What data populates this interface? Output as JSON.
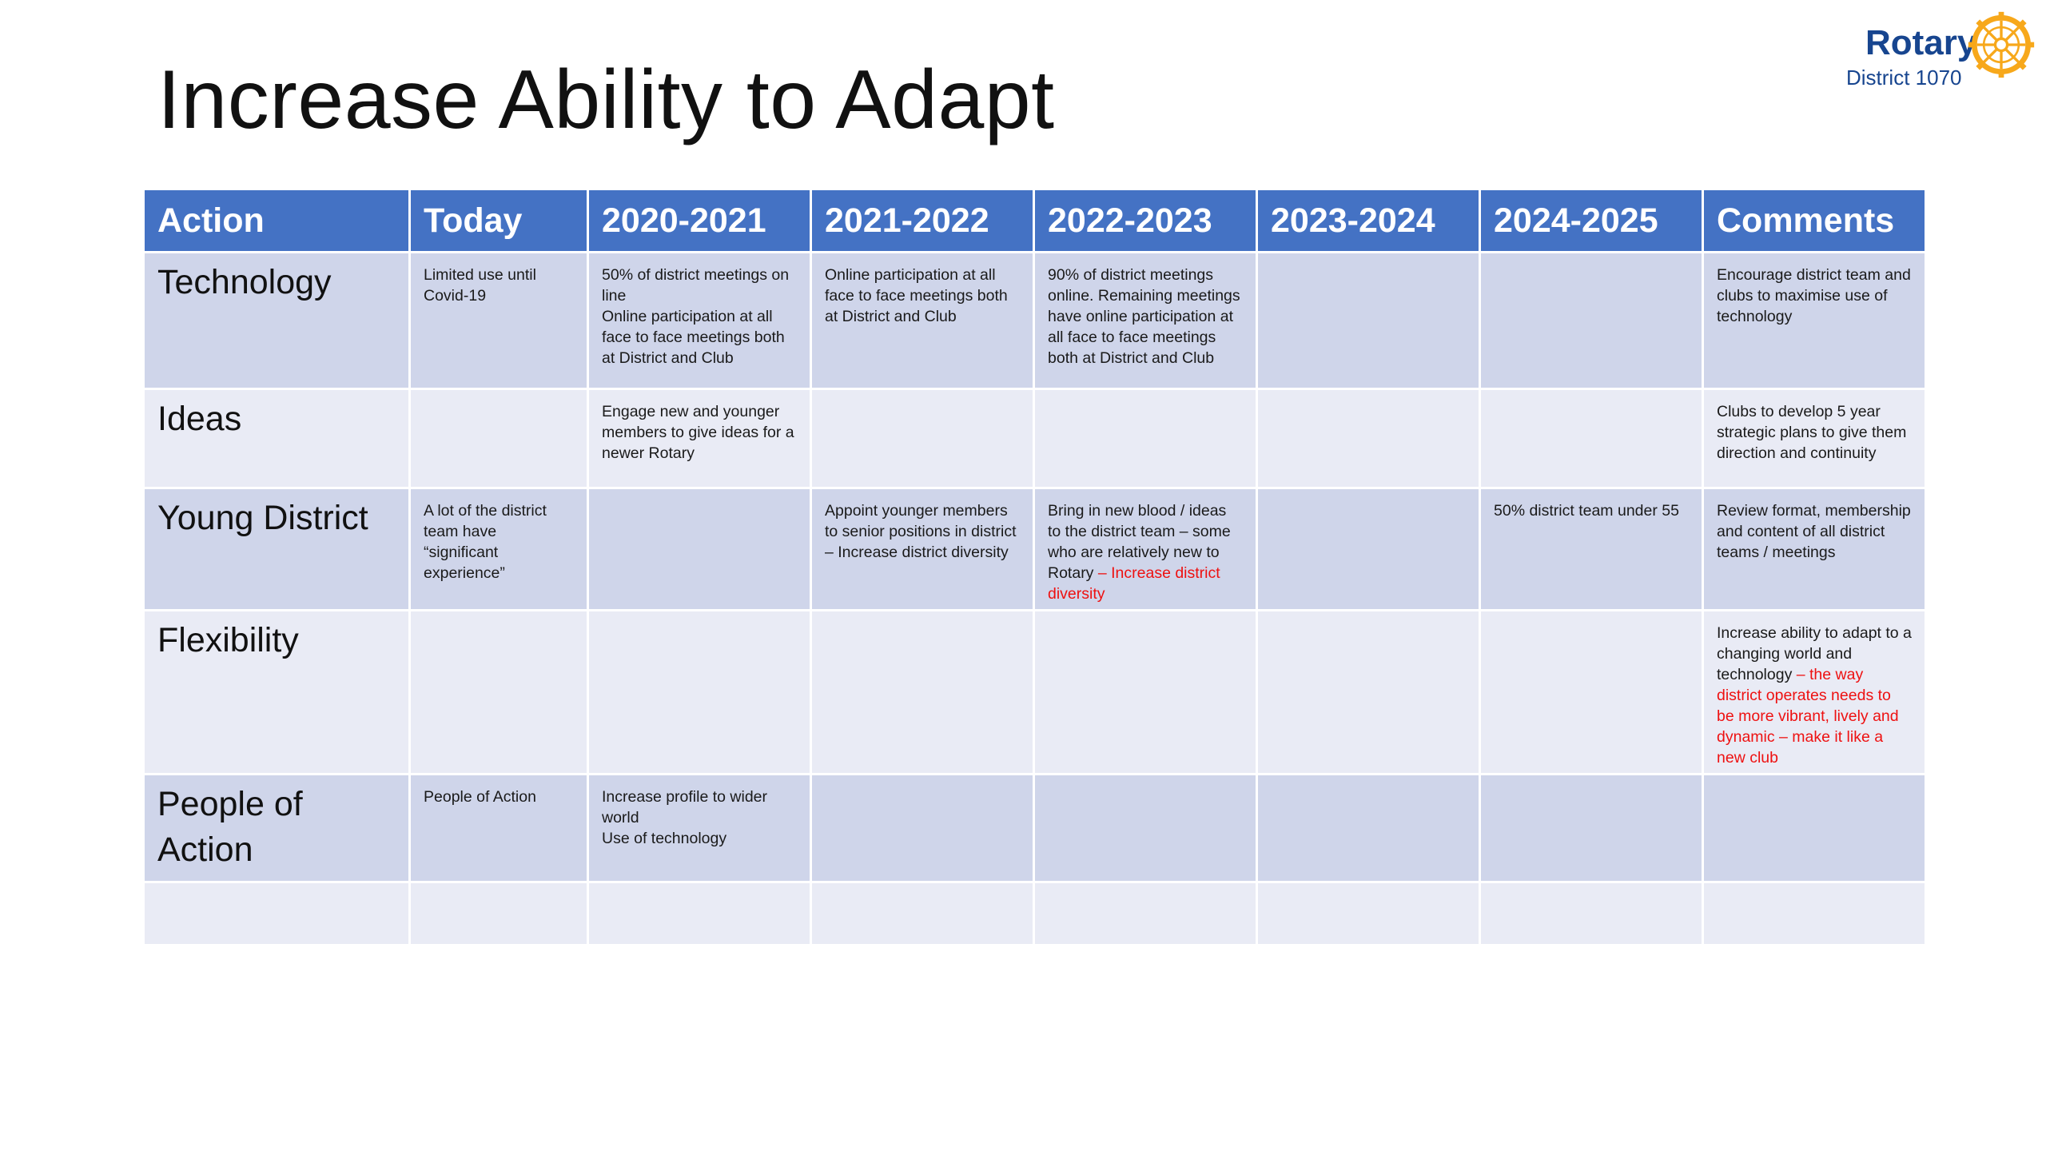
{
  "slide": {
    "title": "Increase Ability to Adapt"
  },
  "logo": {
    "name": "Rotary",
    "district": "District 1070",
    "icon": "rotary-wheel-icon",
    "color": "#17458f",
    "wheel_color": "#f7a81b"
  },
  "colors": {
    "header": "#4472c4",
    "row_dark": "#cfd5ea",
    "row_light": "#e9ebf5",
    "highlight": "#ee1111"
  },
  "table": {
    "headers": [
      "Action",
      "Today",
      "2020-2021",
      "2021-2022",
      "2022-2023",
      "2023-2024",
      "2024-2025",
      "Comments"
    ],
    "rows": {
      "technology": {
        "action": "Technology",
        "today": "Limited use until Covid-19",
        "y2020_2021_a": "50% of district meetings on line",
        "y2020_2021_b": "Online participation at all face to face meetings both at District and Club",
        "y2021_2022": "Online participation at all face to face meetings both at District and Club",
        "y2022_2023": "90% of district meetings online.  Remaining meetings have online participation at all face to face meetings both at District and Club",
        "y2023_2024": "",
        "y2024_2025": "",
        "comments": "Encourage district team and clubs to maximise use of technology"
      },
      "ideas": {
        "action": "Ideas",
        "today": "",
        "y2020_2021": "Engage new and younger members to give ideas for a newer Rotary",
        "y2021_2022": "",
        "y2022_2023": "",
        "y2023_2024": "",
        "y2024_2025": "",
        "comments": "Clubs to develop 5 year strategic plans to give them direction and continuity"
      },
      "young_district": {
        "action": "Young District",
        "today": "A lot of the district team have “significant experience”",
        "y2020_2021": "",
        "y2021_2022": "Appoint younger members to senior positions in district – Increase district diversity",
        "y2022_2023_black": "Bring in new blood / ideas to the district team – some who are relatively new to Rotary ",
        "y2022_2023_red": "– Increase district diversity",
        "y2023_2024": "",
        "y2024_2025": "50% district team under 55",
        "comments": "Review format, membership and content of all district teams / meetings"
      },
      "flexibility": {
        "action": "Flexibility",
        "today": "",
        "y2020_2021": "",
        "y2021_2022": "",
        "y2022_2023": "",
        "y2023_2024": "",
        "y2024_2025": "",
        "comments_black": "Increase ability to adapt to a changing world and technology ",
        "comments_red": "– the way district operates needs to be more vibrant, lively and dynamic – make it like a new club"
      },
      "people_of_action": {
        "action": "People of Action",
        "today": "People of Action",
        "y2020_2021_a": "Increase profile to wider world",
        "y2020_2021_b": "Use of technology",
        "y2021_2022": "",
        "y2022_2023": "",
        "y2023_2024": "",
        "y2024_2025": "",
        "comments": ""
      }
    }
  }
}
